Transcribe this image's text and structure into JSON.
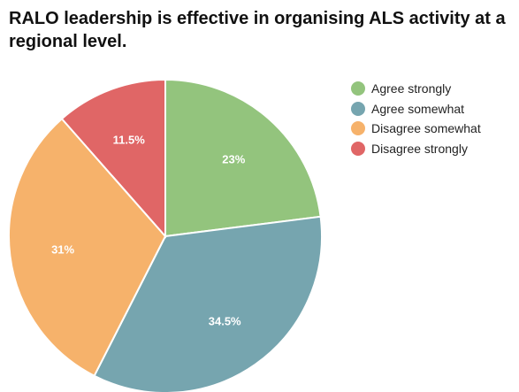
{
  "chart_data": {
    "type": "pie",
    "title": "RALO leadership is effective in organising ALS activity at a regional level.",
    "categories": [
      "Agree strongly",
      "Agree somewhat",
      "Disagree somewhat",
      "Disagree strongly"
    ],
    "values": [
      23,
      34.5,
      31,
      11.5
    ],
    "value_labels": [
      "23%",
      "34.5%",
      "31%",
      "11.5%"
    ],
    "colors": [
      "#93c47d",
      "#76a5af",
      "#f6b26b",
      "#e06666"
    ],
    "legend_position": "right",
    "start_angle": "top",
    "direction": "clockwise"
  }
}
